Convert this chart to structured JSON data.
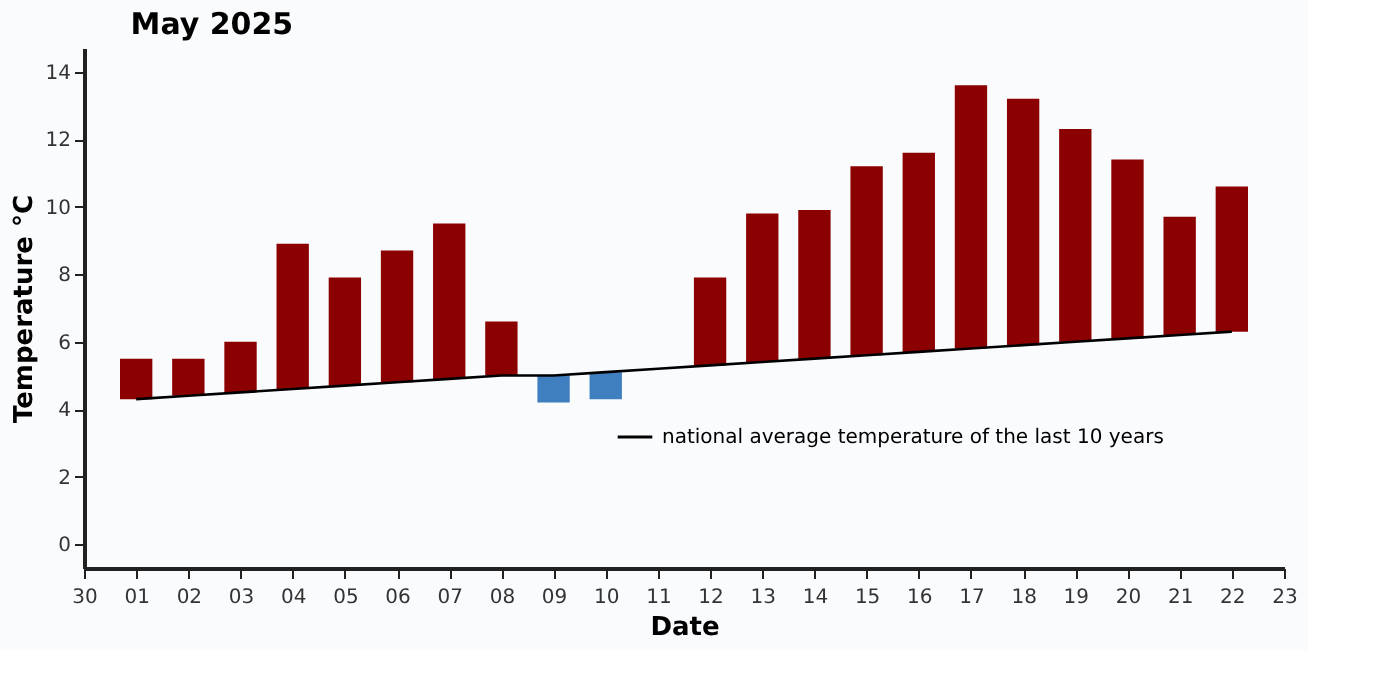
{
  "chart_data": {
    "type": "bar",
    "title": "May 2025",
    "xlabel": "Date",
    "ylabel": "Temperature °C",
    "categories": [
      "30",
      "01",
      "02",
      "03",
      "04",
      "05",
      "06",
      "07",
      "08",
      "09",
      "10",
      "11",
      "12",
      "13",
      "14",
      "15",
      "16",
      "17",
      "18",
      "19",
      "20",
      "21",
      "22",
      "23"
    ],
    "series": [
      {
        "values": [
          null,
          1.2,
          1.1,
          1.5,
          4.3,
          3.2,
          3.9,
          4.6,
          1.6,
          -0.8,
          -0.8,
          null,
          2.6,
          4.4,
          4.4,
          5.6,
          5.9,
          7.8,
          7.3,
          6.3,
          5.3,
          3.5,
          4.3,
          null
        ],
        "base": [
          null,
          4.3,
          4.4,
          4.5,
          4.6,
          4.7,
          4.8,
          4.9,
          5.0,
          5.0,
          5.1,
          null,
          5.3,
          5.4,
          5.5,
          5.6,
          5.7,
          5.8,
          5.9,
          6.0,
          6.1,
          6.2,
          6.3,
          null
        ],
        "colors": [
          null,
          "#8b0000",
          "#8b0000",
          "#8b0000",
          "#8b0000",
          "#8b0000",
          "#8b0000",
          "#8b0000",
          "#8b0000",
          "#3f7fbf",
          "#3f7fbf",
          null,
          "#8b0000",
          "#8b0000",
          "#8b0000",
          "#8b0000",
          "#8b0000",
          "#8b0000",
          "#8b0000",
          "#8b0000",
          "#8b0000",
          "#8b0000",
          "#8b0000",
          null
        ]
      },
      {
        "type": "line",
        "name": "national average temperature of the last 10 years",
        "color": "#000000",
        "line_style": "solid",
        "values": [
          null,
          4.3,
          4.4,
          4.5,
          4.6,
          4.7,
          4.8,
          4.9,
          5.0,
          5.0,
          5.1,
          5.2,
          5.3,
          5.4,
          5.5,
          5.6,
          5.7,
          5.8,
          5.9,
          6.0,
          6.1,
          6.2,
          6.3,
          null
        ]
      }
    ],
    "ylim": [
      -0.7,
      14.7
    ],
    "yticks": [
      0,
      2,
      4,
      6,
      8,
      10,
      12,
      14
    ],
    "grid": false,
    "legend": "bottom right",
    "marker": "none"
  }
}
